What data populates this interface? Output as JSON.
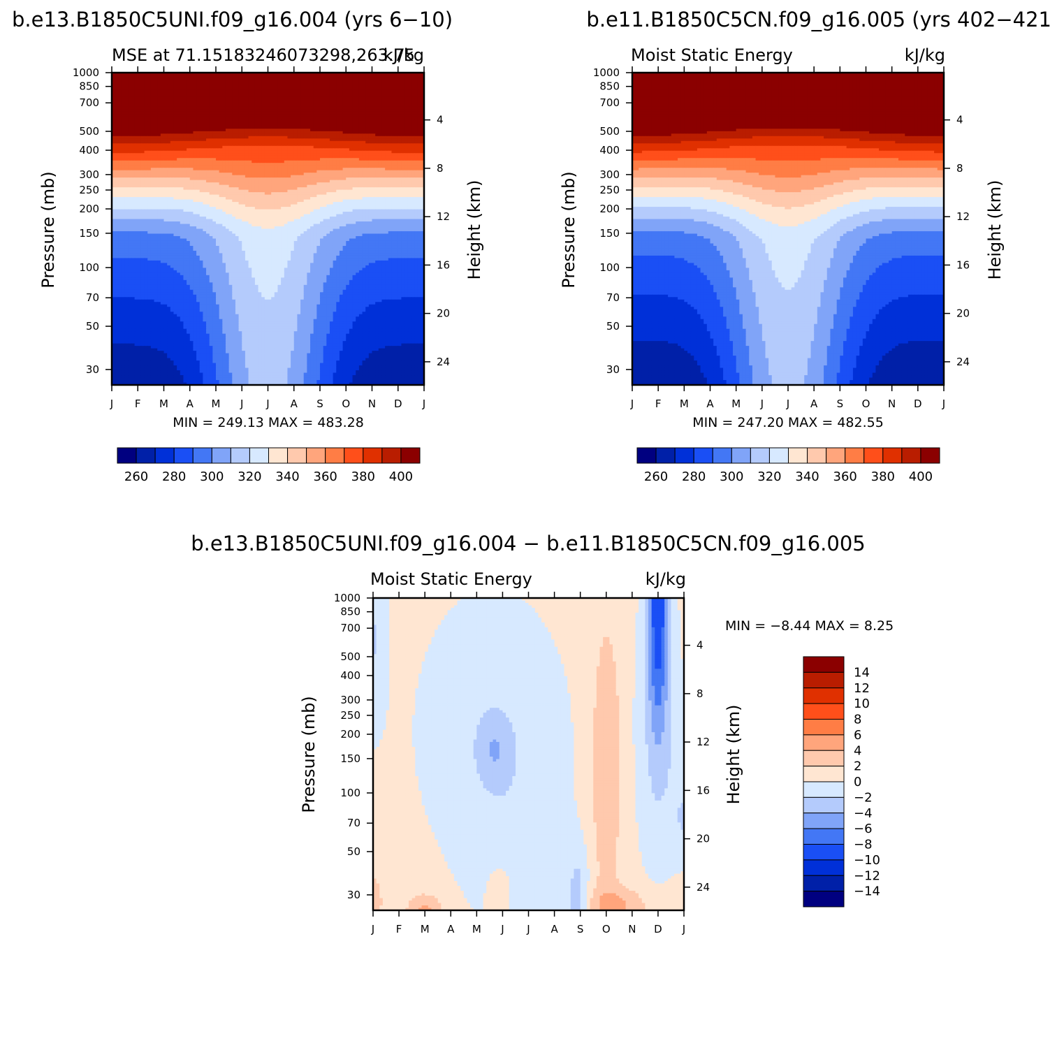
{
  "months": [
    "J",
    "F",
    "M",
    "A",
    "M",
    "J",
    "J",
    "A",
    "S",
    "O",
    "N",
    "D",
    "J"
  ],
  "pressure_ticks": [
    30,
    50,
    70,
    100,
    150,
    200,
    250,
    300,
    400,
    500,
    700,
    850,
    1000
  ],
  "height_ticks": [
    24,
    20,
    16,
    12,
    8,
    4
  ],
  "chart_data": [
    {
      "type": "heatmap",
      "id": "panel1",
      "case_title": "b.e13.B1850C5UNI.f09_g16.004 (yrs 6−10)",
      "left_title": "MSE at 71.15183246073298,263.75",
      "right_title": "kJ/kg",
      "ylabel": "Pressure (mb)",
      "y2label": "Height (km)",
      "minmax": "MIN = 249.13 MAX = 483.28",
      "colorbar_labels": [
        "260",
        "280",
        "300",
        "320",
        "340",
        "360",
        "380",
        "400"
      ],
      "levels": [
        250,
        260,
        270,
        280,
        290,
        300,
        310,
        320,
        330,
        340,
        350,
        360,
        370,
        380,
        390,
        400
      ],
      "colors": [
        "#000080",
        "#0020a8",
        "#0030d8",
        "#1a4ff5",
        "#4377f5",
        "#80a4f8",
        "#b4cbfc",
        "#d7e9ff",
        "#ffe6d2",
        "#ffc9ad",
        "#ffa57c",
        "#ff7d45",
        "#ff4f1a",
        "#e03000",
        "#b91d00",
        "#8b0000"
      ],
      "ylim_mb": [
        1000,
        25
      ],
      "field": "mse_clim",
      "variant": 0
    },
    {
      "type": "heatmap",
      "id": "panel2",
      "case_title": "b.e11.B1850C5CN.f09_g16.005 (yrs 402−421",
      "left_title": "Moist Static Energy",
      "right_title": "kJ/kg",
      "ylabel": "Pressure (mb)",
      "y2label": "Height (km)",
      "minmax": "MIN = 247.20 MAX = 482.55",
      "colorbar_labels": [
        "260",
        "280",
        "300",
        "320",
        "340",
        "360",
        "380",
        "400"
      ],
      "levels": [
        250,
        260,
        270,
        280,
        290,
        300,
        310,
        320,
        330,
        340,
        350,
        360,
        370,
        380,
        390,
        400
      ],
      "colors": [
        "#000080",
        "#0020a8",
        "#0030d8",
        "#1a4ff5",
        "#4377f5",
        "#80a4f8",
        "#b4cbfc",
        "#d7e9ff",
        "#ffe6d2",
        "#ffc9ad",
        "#ffa57c",
        "#ff7d45",
        "#ff4f1a",
        "#e03000",
        "#b91d00",
        "#8b0000"
      ],
      "ylim_mb": [
        1000,
        25
      ],
      "field": "mse_clim",
      "variant": 1
    },
    {
      "type": "heatmap",
      "id": "panel3",
      "case_title": "b.e13.B1850C5UNI.f09_g16.004 − b.e11.B1850C5CN.f09_g16.005",
      "left_title": "Moist Static Energy",
      "right_title": "kJ/kg",
      "ylabel": "Pressure (mb)",
      "y2label": "Height (km)",
      "minmax": "MIN =   −8.44 MAX =    8.25",
      "colorbar_labels": [
        "14",
        "12",
        "10",
        "8",
        "6",
        "4",
        "2",
        "0",
        "−2",
        "−4",
        "−6",
        "−8",
        "−10",
        "−12",
        "−14"
      ],
      "levels": [
        -14,
        -12,
        -10,
        -8,
        -6,
        -4,
        -2,
        0,
        2,
        4,
        6,
        8,
        10,
        12,
        14
      ],
      "colors": [
        "#000080",
        "#0020a8",
        "#0030d8",
        "#1a4ff5",
        "#4377f5",
        "#80a4f8",
        "#b4cbfc",
        "#d7e9ff",
        "#ffe6d2",
        "#ffc9ad",
        "#ffa57c",
        "#ff7d45",
        "#ff4f1a",
        "#e03000",
        "#b91d00",
        "#8b0000"
      ],
      "ylim_mb": [
        1000,
        25
      ],
      "field": "mse_diff",
      "variant": 2
    }
  ]
}
